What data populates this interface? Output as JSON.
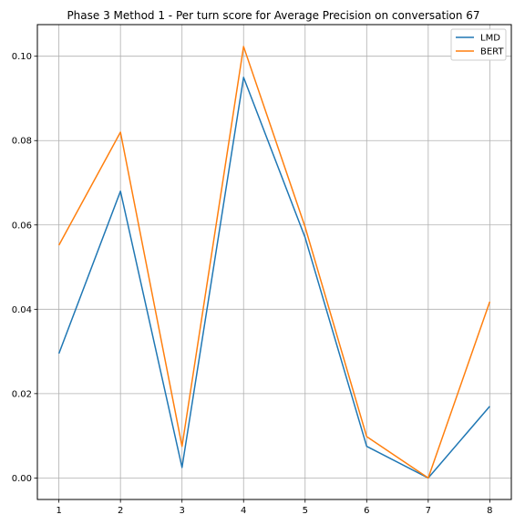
{
  "chart_data": {
    "type": "line",
    "title": "Phase 3 Method 1 - Per turn score for Average Precision on conversation 67",
    "xlabel": "",
    "ylabel": "",
    "x": [
      1,
      2,
      3,
      4,
      5,
      6,
      7,
      8
    ],
    "xlim": [
      0.65,
      8.35
    ],
    "ylim": [
      -0.0051,
      0.1075
    ],
    "xticks": [
      "1",
      "2",
      "3",
      "4",
      "5",
      "6",
      "7",
      "8"
    ],
    "yticks": [
      "0.00",
      "0.02",
      "0.04",
      "0.06",
      "0.08",
      "0.10"
    ],
    "grid": true,
    "legend_position": "top-right",
    "series": [
      {
        "name": "LMD",
        "color": "#1f77b4",
        "values": [
          0.0295,
          0.068,
          0.0025,
          0.095,
          0.057,
          0.0075,
          0.0,
          0.017
        ]
      },
      {
        "name": "BERT",
        "color": "#ff7f0e",
        "values": [
          0.0552,
          0.082,
          0.0075,
          0.1023,
          0.0595,
          0.0098,
          0.0,
          0.0418
        ]
      }
    ]
  }
}
